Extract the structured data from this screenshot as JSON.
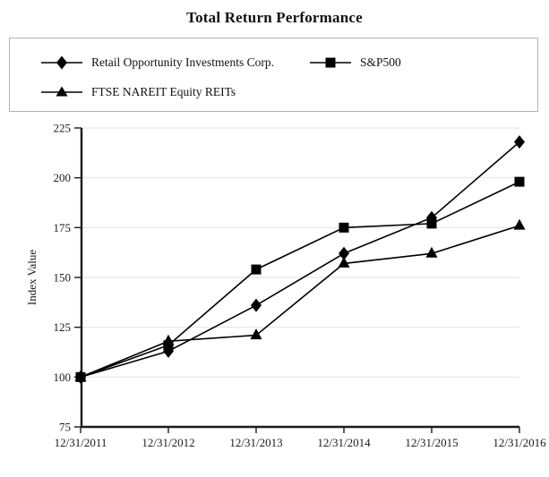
{
  "title": "Total Return Performance",
  "legend": {
    "items": [
      {
        "label": "Retail Opportunity Investments Corp.",
        "marker": "diamond"
      },
      {
        "label": "S&P500",
        "marker": "square"
      },
      {
        "label": "FTSE NAREIT Equity REITs",
        "marker": "triangle"
      }
    ]
  },
  "chart_data": {
    "type": "line",
    "x": [
      "12/31/2011",
      "12/31/2012",
      "12/31/2013",
      "12/31/2014",
      "12/31/2015",
      "12/31/2016"
    ],
    "series": [
      {
        "name": "Retail Opportunity Investments Corp.",
        "marker": "diamond",
        "values": [
          100,
          113,
          136,
          162,
          180,
          218
        ]
      },
      {
        "name": "S&P500",
        "marker": "square",
        "values": [
          100,
          116,
          154,
          175,
          177,
          198
        ]
      },
      {
        "name": "FTSE NAREIT Equity REITs",
        "marker": "triangle",
        "values": [
          100,
          118,
          121,
          157,
          162,
          176
        ]
      }
    ],
    "title": "Total Return Performance",
    "xlabel": "",
    "ylabel": "Index Value",
    "ylim": [
      75,
      225
    ],
    "yticks": [
      75,
      100,
      125,
      150,
      175,
      200,
      225
    ],
    "grid": "horizontal-light",
    "legend_position": "top",
    "line_color": "#000000",
    "marker_color": "#000000",
    "axis_color": "#1a1a1a",
    "grid_color": "#e2e2e2",
    "background": "#ffffff"
  }
}
